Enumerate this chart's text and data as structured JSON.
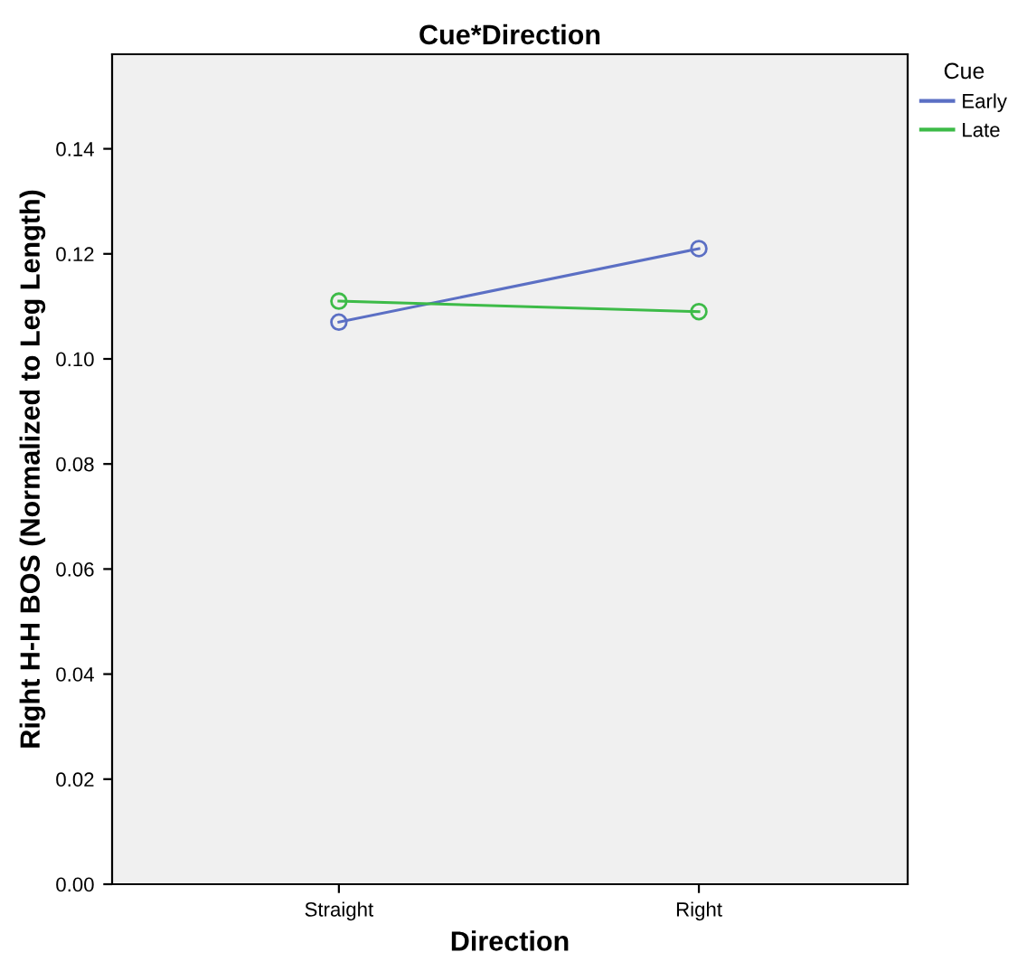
{
  "chart_data": {
    "type": "line",
    "title": "Cue*Direction",
    "xlabel": "Direction",
    "ylabel": "Right H-H BOS (Normalized to Leg Length)",
    "legend_title": "Cue",
    "categories": [
      "Straight",
      "Right"
    ],
    "series": [
      {
        "name": "Early",
        "color": "#5b6fc4",
        "values": [
          0.107,
          0.121
        ]
      },
      {
        "name": "Late",
        "color": "#3dbb48",
        "values": [
          0.111,
          0.109
        ]
      }
    ],
    "ylim": [
      0,
      0.158
    ],
    "yticks": [
      {
        "value": 0,
        "label": "0.00"
      },
      {
        "value": 0.02,
        "label": "0.02"
      },
      {
        "value": 0.04,
        "label": "0.04"
      },
      {
        "value": 0.06,
        "label": "0.06"
      },
      {
        "value": 0.08,
        "label": "0.08"
      },
      {
        "value": 0.1,
        "label": "0.10"
      },
      {
        "value": 0.12,
        "label": "0.12"
      },
      {
        "value": 0.14,
        "label": "0.14"
      }
    ],
    "marker": "circle",
    "line_style": "solid",
    "grid": false,
    "legend": "top right"
  }
}
